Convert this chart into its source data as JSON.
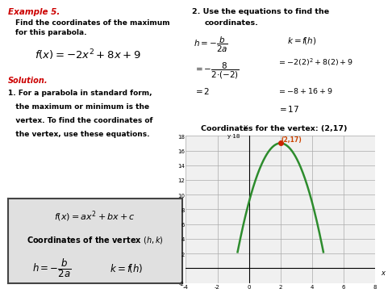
{
  "background_color": "#ffffff",
  "example_label": "Example 5.",
  "red_color": "#cc0000",
  "text_color": "#000000",
  "curve_color": "#2d8c2d",
  "vertex_dot_color": "#cc2200",
  "vertex_label_color": "#cc4400",
  "grid_color": "#aaaaaa",
  "box_bg": "#e0e0e0",
  "box_border": "#444444",
  "graph_bg": "#f0f0f0",
  "graph_xlim": [
    -4,
    8
  ],
  "graph_ylim": [
    -2,
    18
  ],
  "graph_xticks": [
    -4,
    -2,
    0,
    2,
    4,
    6,
    8
  ],
  "graph_yticks": [
    -2,
    0,
    2,
    4,
    6,
    8,
    10,
    12,
    14,
    16,
    18
  ]
}
